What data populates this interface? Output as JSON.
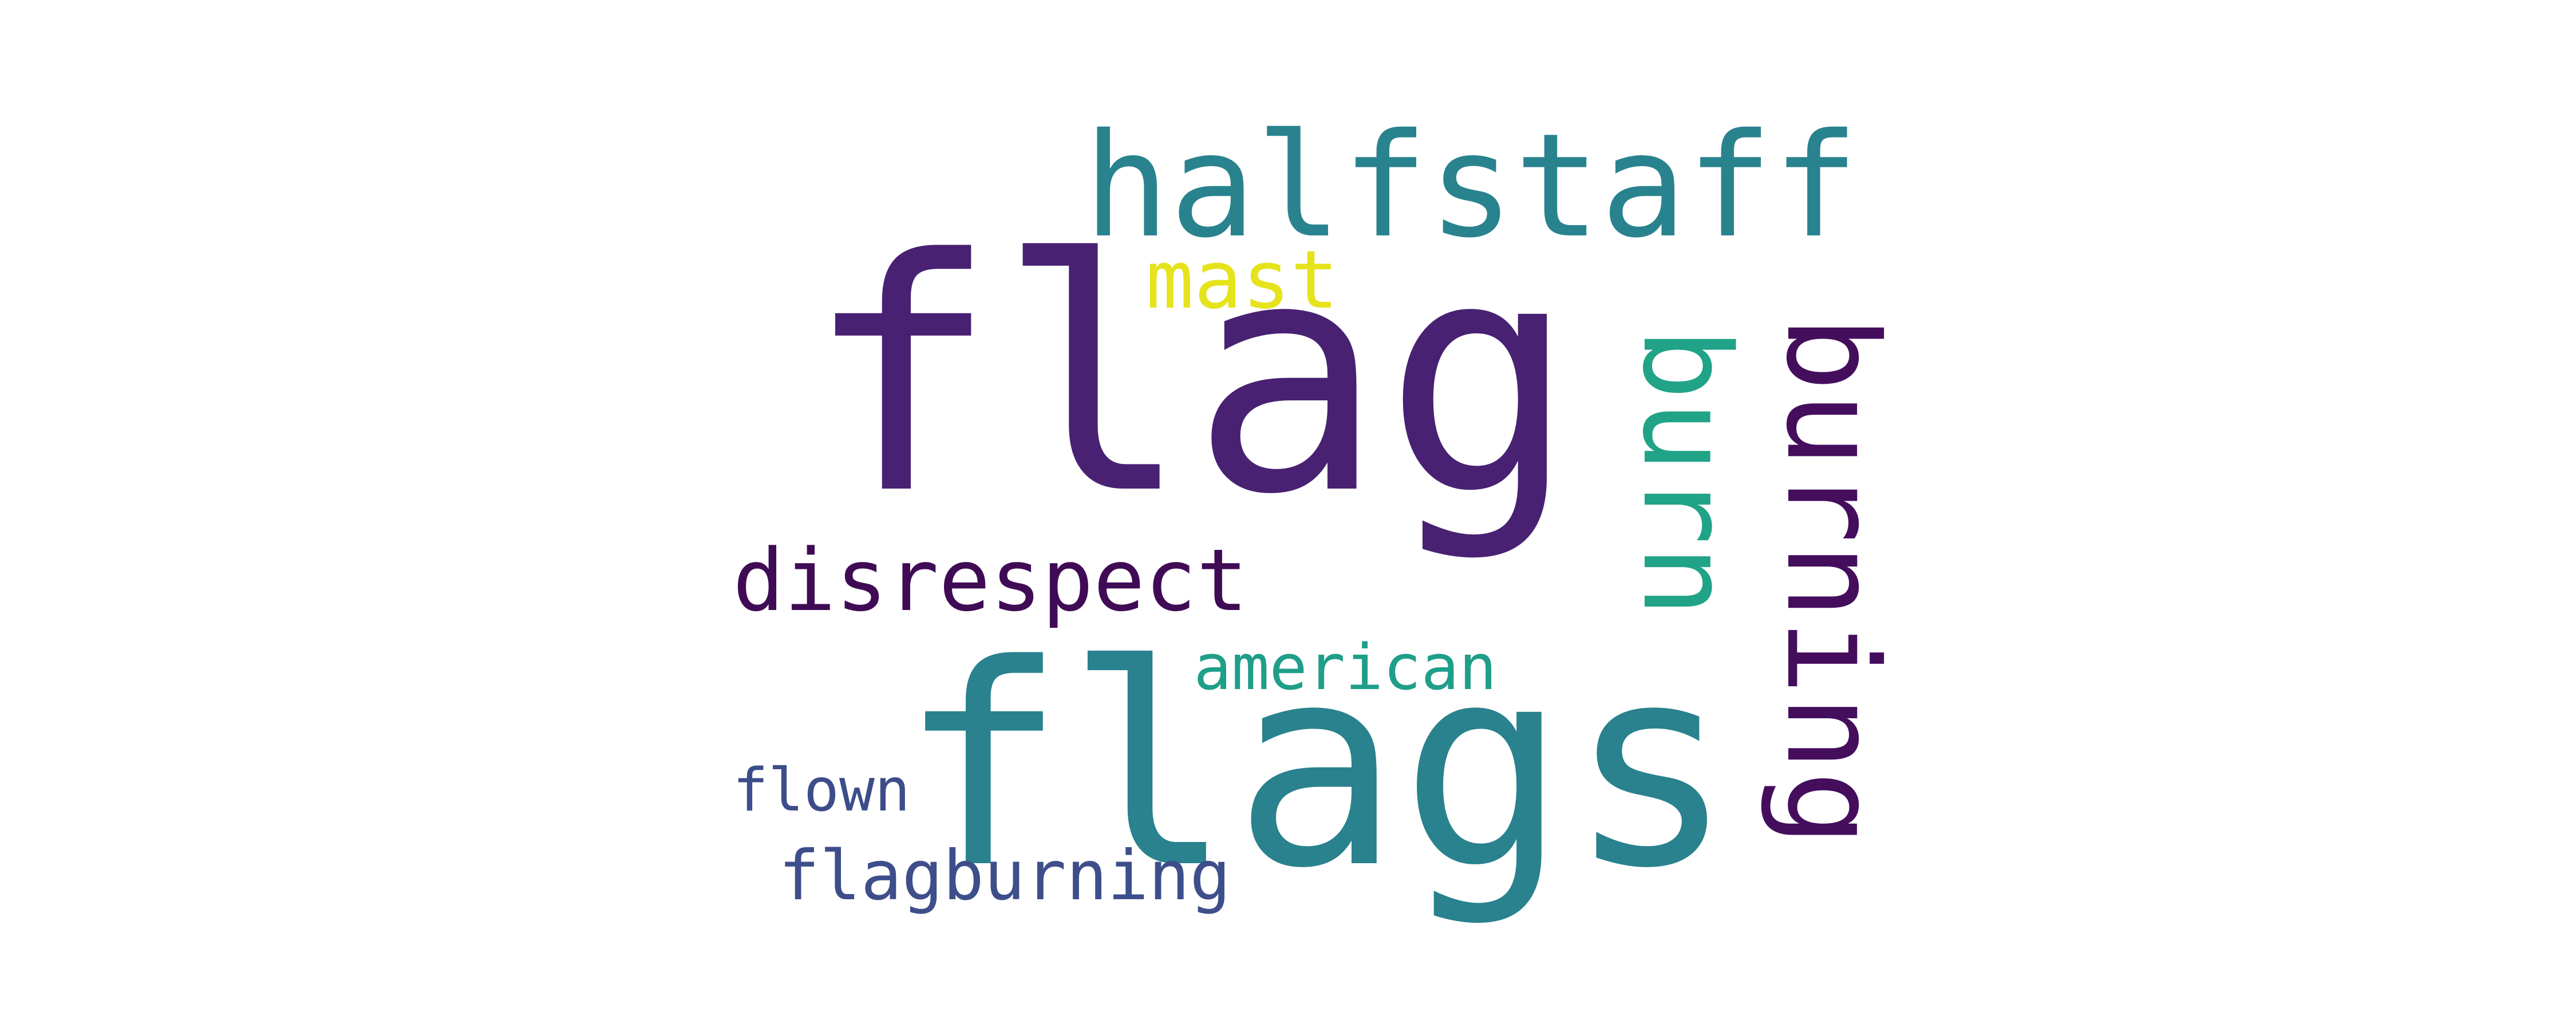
{
  "cloud": {
    "words": [
      {
        "text": "flag",
        "color": "#482173",
        "weight": 1.0,
        "orientation": "horizontal"
      },
      {
        "text": "flags",
        "color": "#29828e",
        "weight": 0.75,
        "orientation": "horizontal"
      },
      {
        "text": "halfstaff",
        "color": "#29838e",
        "weight": 0.42,
        "orientation": "horizontal"
      },
      {
        "text": "burning",
        "color": "#440e5d",
        "weight": 0.6,
        "orientation": "vertical"
      },
      {
        "text": "burn",
        "color": "#20a386",
        "weight": 0.55,
        "orientation": "vertical"
      },
      {
        "text": "disrespect",
        "color": "#400b55",
        "weight": 0.23,
        "orientation": "horizontal"
      },
      {
        "text": "american",
        "color": "#1f9e89",
        "weight": 0.18,
        "orientation": "horizontal"
      },
      {
        "text": "flagburning",
        "color": "#3d4e8a",
        "weight": 0.19,
        "orientation": "horizontal"
      },
      {
        "text": "flown",
        "color": "#3d4d8a",
        "weight": 0.17,
        "orientation": "horizontal"
      },
      {
        "text": "mast",
        "color": "#e5e31b",
        "weight": 0.24,
        "orientation": "horizontal"
      }
    ]
  }
}
